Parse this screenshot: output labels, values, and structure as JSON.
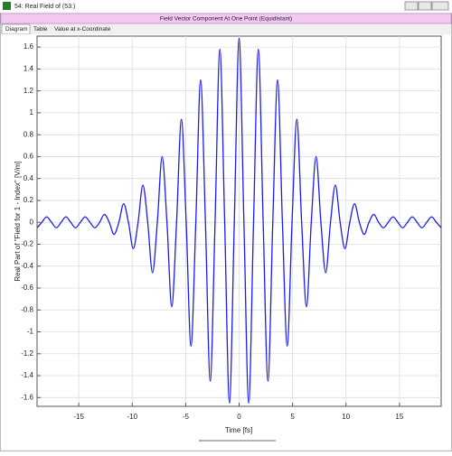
{
  "window": {
    "title": "54: Real Field of (53:)",
    "header": "Field Vector Component At One Point (Equidistant)",
    "tabs": [
      "Diagram",
      "Table",
      "Value at x-Coordinate"
    ]
  },
  "chart_data": {
    "type": "line",
    "xlabel": "Time [fs]",
    "ylabel": "Real Part of \"Field for 1 - Index\" [V/m]",
    "x": [
      -18.9,
      -18.45,
      -18,
      -17.55,
      -17.1,
      -16.65,
      -16.2,
      -15.75,
      -15.3,
      -14.85,
      -14.4,
      -13.95,
      -13.5,
      -13.05,
      -12.6,
      -12.15,
      -11.7,
      -11.25,
      -10.8,
      -10.35,
      -9.9,
      -9.45,
      -9,
      -8.55,
      -8.1,
      -7.65,
      -7.2,
      -6.75,
      -6.3,
      -5.85,
      -5.4,
      -4.95,
      -4.5,
      -4.05,
      -3.6,
      -3.15,
      -2.7,
      -2.25,
      -1.8,
      -1.35,
      -0.9,
      -0.45,
      0,
      0.45,
      0.9,
      1.35,
      1.8,
      2.25,
      2.7,
      3.15,
      3.6,
      4.05,
      4.5,
      4.95,
      5.4,
      5.85,
      6.3,
      6.75,
      7.2,
      7.65,
      8.1,
      8.55,
      9,
      9.45,
      9.9,
      10.35,
      10.8,
      11.25,
      11.7,
      12.15,
      12.6,
      13.05,
      13.5,
      13.95,
      14.4,
      14.85,
      15.3,
      15.75,
      16.2,
      16.65,
      17.1,
      17.55,
      18,
      18.45,
      18.9
    ],
    "series": [
      {
        "name": "Real Part",
        "color": "#1c1cf0",
        "values": [
          -0.05,
          0,
          0.05,
          0,
          -0.05,
          0,
          0.05,
          0,
          -0.05,
          0,
          0.05,
          0,
          -0.05,
          0,
          0.073,
          0,
          -0.11,
          0,
          0.17,
          0,
          -0.24,
          0,
          0.34,
          0,
          -0.46,
          0,
          0.6,
          0,
          -0.77,
          0,
          0.94,
          0,
          -1.13,
          0,
          1.3,
          0,
          -1.45,
          0,
          1.58,
          0,
          -1.65,
          0,
          1.68,
          0,
          -1.65,
          0,
          1.58,
          0,
          -1.45,
          0,
          1.3,
          0,
          -1.13,
          0,
          0.94,
          0,
          -0.77,
          0,
          0.6,
          0,
          -0.46,
          0,
          0.34,
          0,
          -0.24,
          0,
          0.17,
          0,
          -0.11,
          0,
          0.073,
          0,
          -0.05,
          0,
          0.05,
          0,
          -0.05,
          0,
          0.05,
          0,
          -0.05,
          0,
          0.05,
          0,
          -0.05
        ]
      }
    ],
    "xlim": [
      -18.9,
      18.9
    ],
    "ylim": [
      -1.68,
      1.7
    ],
    "xticks": [
      -15,
      -10,
      -5,
      0,
      5,
      10,
      15
    ],
    "yticks": [
      -1.6,
      -1.4,
      -1.2,
      -1,
      -0.8,
      -0.6,
      -0.4,
      -0.2,
      0,
      0.2,
      0.4,
      0.6,
      0.8,
      1,
      1.2,
      1.4,
      1.6
    ],
    "grid": true
  }
}
